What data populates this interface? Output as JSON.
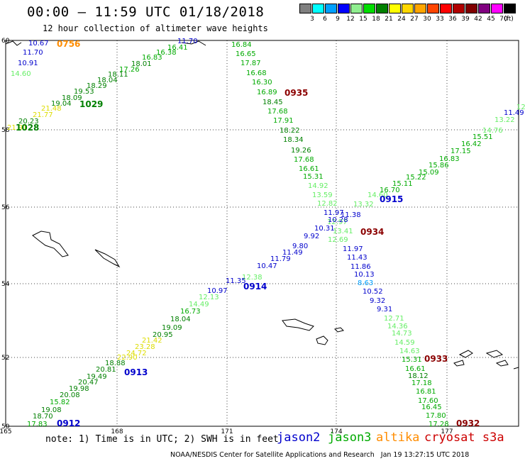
{
  "title": "00:00 – 11:59 UTC 01/18/2018",
  "subtitle": "12 hour collection of altimeter wave heights",
  "colorbar": {
    "unit": "(ft)",
    "levels": [
      {
        "label": "3",
        "color": "#808080"
      },
      {
        "label": "6",
        "color": "#00ffff"
      },
      {
        "label": "9",
        "color": "#00a0ff"
      },
      {
        "label": "12",
        "color": "#0000ff"
      },
      {
        "label": "15",
        "color": "#90ee90"
      },
      {
        "label": "18",
        "color": "#00dd00"
      },
      {
        "label": "21",
        "color": "#008000"
      },
      {
        "label": "24",
        "color": "#ffff00"
      },
      {
        "label": "27",
        "color": "#ffd700"
      },
      {
        "label": "30",
        "color": "#ffa500"
      },
      {
        "label": "33",
        "color": "#ff4500"
      },
      {
        "label": "36",
        "color": "#ff0000"
      },
      {
        "label": "39",
        "color": "#b00000"
      },
      {
        "label": "42",
        "color": "#800000"
      },
      {
        "label": "45",
        "color": "#800080"
      },
      {
        "label": "70",
        "color": "#ff00ff"
      },
      {
        "label": "",
        "color": "#000000"
      }
    ]
  },
  "axes": {
    "lat_ticks": [
      "60",
      "58",
      "56",
      "54",
      "52",
      "50"
    ],
    "lon_ticks": [
      "165",
      "168",
      "171",
      "174",
      "177"
    ]
  },
  "swh_labels": [
    {
      "t": "10.67",
      "c": "#0000cc"
    },
    {
      "t": "11.70",
      "c": "#0000cc"
    },
    {
      "t": "10.91",
      "c": "#0000cc"
    },
    {
      "t": "14.60",
      "c": "#66ee66"
    },
    {
      "t": "11.70",
      "c": "#0000cc"
    },
    {
      "t": "16.41",
      "c": "#00aa00"
    },
    {
      "t": "16.38",
      "c": "#00aa00"
    },
    {
      "t": "16.83",
      "c": "#00aa00"
    },
    {
      "t": "18.01",
      "c": "#008000"
    },
    {
      "t": "17.26",
      "c": "#00aa00"
    },
    {
      "t": "18.11",
      "c": "#008000"
    },
    {
      "t": "18.04",
      "c": "#008000"
    },
    {
      "t": "18.29",
      "c": "#008000"
    },
    {
      "t": "19.53",
      "c": "#008000"
    },
    {
      "t": "18.09",
      "c": "#008000"
    },
    {
      "t": "19.04",
      "c": "#008000"
    },
    {
      "t": "21.48",
      "c": "#dddd00"
    },
    {
      "t": "21.77",
      "c": "#dddd00"
    },
    {
      "t": "20.23",
      "c": "#008000"
    },
    {
      "t": "21.91",
      "c": "#dddd00"
    },
    {
      "t": "16.84",
      "c": "#00aa00"
    },
    {
      "t": "16.65",
      "c": "#00aa00"
    },
    {
      "t": "17.87",
      "c": "#00aa00"
    },
    {
      "t": "16.68",
      "c": "#00aa00"
    },
    {
      "t": "16.30",
      "c": "#00aa00"
    },
    {
      "t": "16.89",
      "c": "#00aa00"
    },
    {
      "t": "18.45",
      "c": "#008000"
    },
    {
      "t": "17.68",
      "c": "#00aa00"
    },
    {
      "t": "17.91",
      "c": "#00aa00"
    },
    {
      "t": "18.22",
      "c": "#008000"
    },
    {
      "t": "18.34",
      "c": "#008000"
    },
    {
      "t": "19.26",
      "c": "#008000"
    },
    {
      "t": "17.68",
      "c": "#00aa00"
    },
    {
      "t": "16.61",
      "c": "#00aa00"
    },
    {
      "t": "15.31",
      "c": "#00aa00"
    },
    {
      "t": "14.92",
      "c": "#66ee66"
    },
    {
      "t": "13.59",
      "c": "#66ee66"
    },
    {
      "t": "12.82",
      "c": "#66ee66"
    },
    {
      "t": "11.97",
      "c": "#0000cc"
    },
    {
      "t": "12.97",
      "c": "#66ee66"
    },
    {
      "t": "13.41",
      "c": "#66ee66"
    },
    {
      "t": "12.69",
      "c": "#66ee66"
    },
    {
      "t": "11.97",
      "c": "#0000cc"
    },
    {
      "t": "11.43",
      "c": "#0000cc"
    },
    {
      "t": "11.86",
      "c": "#0000cc"
    },
    {
      "t": "10.13",
      "c": "#0000cc"
    },
    {
      "t": "8.63",
      "c": "#00a0ff"
    },
    {
      "t": "10.52",
      "c": "#0000cc"
    },
    {
      "t": "9.32",
      "c": "#0000cc"
    },
    {
      "t": "9.31",
      "c": "#0000cc"
    },
    {
      "t": "12.71",
      "c": "#66ee66"
    },
    {
      "t": "14.36",
      "c": "#66ee66"
    },
    {
      "t": "14.73",
      "c": "#66ee66"
    },
    {
      "t": "14.59",
      "c": "#66ee66"
    },
    {
      "t": "14.63",
      "c": "#66ee66"
    },
    {
      "t": "15.31",
      "c": "#00aa00"
    },
    {
      "t": "16.61",
      "c": "#00aa00"
    },
    {
      "t": "18.12",
      "c": "#008000"
    },
    {
      "t": "17.18",
      "c": "#00aa00"
    },
    {
      "t": "16.81",
      "c": "#00aa00"
    },
    {
      "t": "17.60",
      "c": "#00aa00"
    },
    {
      "t": "16.45",
      "c": "#00aa00"
    },
    {
      "t": "17.80",
      "c": "#00aa00"
    },
    {
      "t": "17.28",
      "c": "#00aa00"
    },
    {
      "t": "12",
      "c": "#66ee66"
    },
    {
      "t": "11.49",
      "c": "#0000cc"
    },
    {
      "t": "13.22",
      "c": "#66ee66"
    },
    {
      "t": "14.76",
      "c": "#66ee66"
    },
    {
      "t": "15.51",
      "c": "#00aa00"
    },
    {
      "t": "16.42",
      "c": "#00aa00"
    },
    {
      "t": "17.15",
      "c": "#00aa00"
    },
    {
      "t": "16.83",
      "c": "#00aa00"
    },
    {
      "t": "15.86",
      "c": "#00aa00"
    },
    {
      "t": "15.09",
      "c": "#00aa00"
    },
    {
      "t": "15.22",
      "c": "#00aa00"
    },
    {
      "t": "15.11",
      "c": "#00aa00"
    },
    {
      "t": "16.70",
      "c": "#00aa00"
    },
    {
      "t": "14.60",
      "c": "#66ee66"
    },
    {
      "t": "13.32",
      "c": "#66ee66"
    },
    {
      "t": "11.38",
      "c": "#0000cc"
    },
    {
      "t": "10.28",
      "c": "#0000cc"
    },
    {
      "t": "10.31",
      "c": "#0000cc"
    },
    {
      "t": "9.92",
      "c": "#0000cc"
    },
    {
      "t": "9.80",
      "c": "#0000cc"
    },
    {
      "t": "11.49",
      "c": "#0000cc"
    },
    {
      "t": "11.79",
      "c": "#0000cc"
    },
    {
      "t": "10.47",
      "c": "#0000cc"
    },
    {
      "t": "12.38",
      "c": "#66ee66"
    },
    {
      "t": "11.35",
      "c": "#0000cc"
    },
    {
      "t": "10.97",
      "c": "#0000cc"
    },
    {
      "t": "12.13",
      "c": "#66ee66"
    },
    {
      "t": "14.49",
      "c": "#66ee66"
    },
    {
      "t": "16.73",
      "c": "#00aa00"
    },
    {
      "t": "18.04",
      "c": "#008000"
    },
    {
      "t": "19.09",
      "c": "#008000"
    },
    {
      "t": "20.95",
      "c": "#008000"
    },
    {
      "t": "21.42",
      "c": "#dddd00"
    },
    {
      "t": "23.28",
      "c": "#dddd00"
    },
    {
      "t": "24.72",
      "c": "#dddd00"
    },
    {
      "t": "22.90",
      "c": "#dddd00"
    },
    {
      "t": "18.88",
      "c": "#008000"
    },
    {
      "t": "20.81",
      "c": "#008000"
    },
    {
      "t": "19.49",
      "c": "#008000"
    },
    {
      "t": "20.47",
      "c": "#008000"
    },
    {
      "t": "19.98",
      "c": "#008000"
    },
    {
      "t": "20.08",
      "c": "#008000"
    },
    {
      "t": "15.82",
      "c": "#00aa00"
    },
    {
      "t": "19.08",
      "c": "#008000"
    },
    {
      "t": "18.70",
      "c": "#008000"
    },
    {
      "t": "17.83",
      "c": "#00aa00"
    },
    {
      "t": "19.08",
      "c": "#008000"
    },
    {
      "t": "16.91",
      "c": "#00aa00"
    }
  ],
  "time_labels": [
    {
      "t": "0756",
      "c": "#ff8c00"
    },
    {
      "t": "1029",
      "c": "#008000"
    },
    {
      "t": "1028",
      "c": "#008000"
    },
    {
      "t": "0935",
      "c": "#8b0000"
    },
    {
      "t": "0915",
      "c": "#0000cc"
    },
    {
      "t": "0934",
      "c": "#8b0000"
    },
    {
      "t": "0914",
      "c": "#0000cc"
    },
    {
      "t": "0913",
      "c": "#0000cc"
    },
    {
      "t": "0912",
      "c": "#0000cc"
    },
    {
      "t": "0933",
      "c": "#8b0000"
    },
    {
      "t": "0932",
      "c": "#8b0000"
    }
  ],
  "note": "note: 1) Time is in UTC; 2) SWH is in feet",
  "satellites": [
    {
      "name": "jason2",
      "color": "#0000cc"
    },
    {
      "name": "jason3",
      "color": "#00aa00"
    },
    {
      "name": "altika",
      "color": "#ff8c00"
    },
    {
      "name": "cryosat s3a",
      "color": "#cc0000"
    }
  ],
  "footer": "NOAA/NESDIS Center for Satellite Applications and Research   Jan 19 13:27:15 UTC 2018"
}
